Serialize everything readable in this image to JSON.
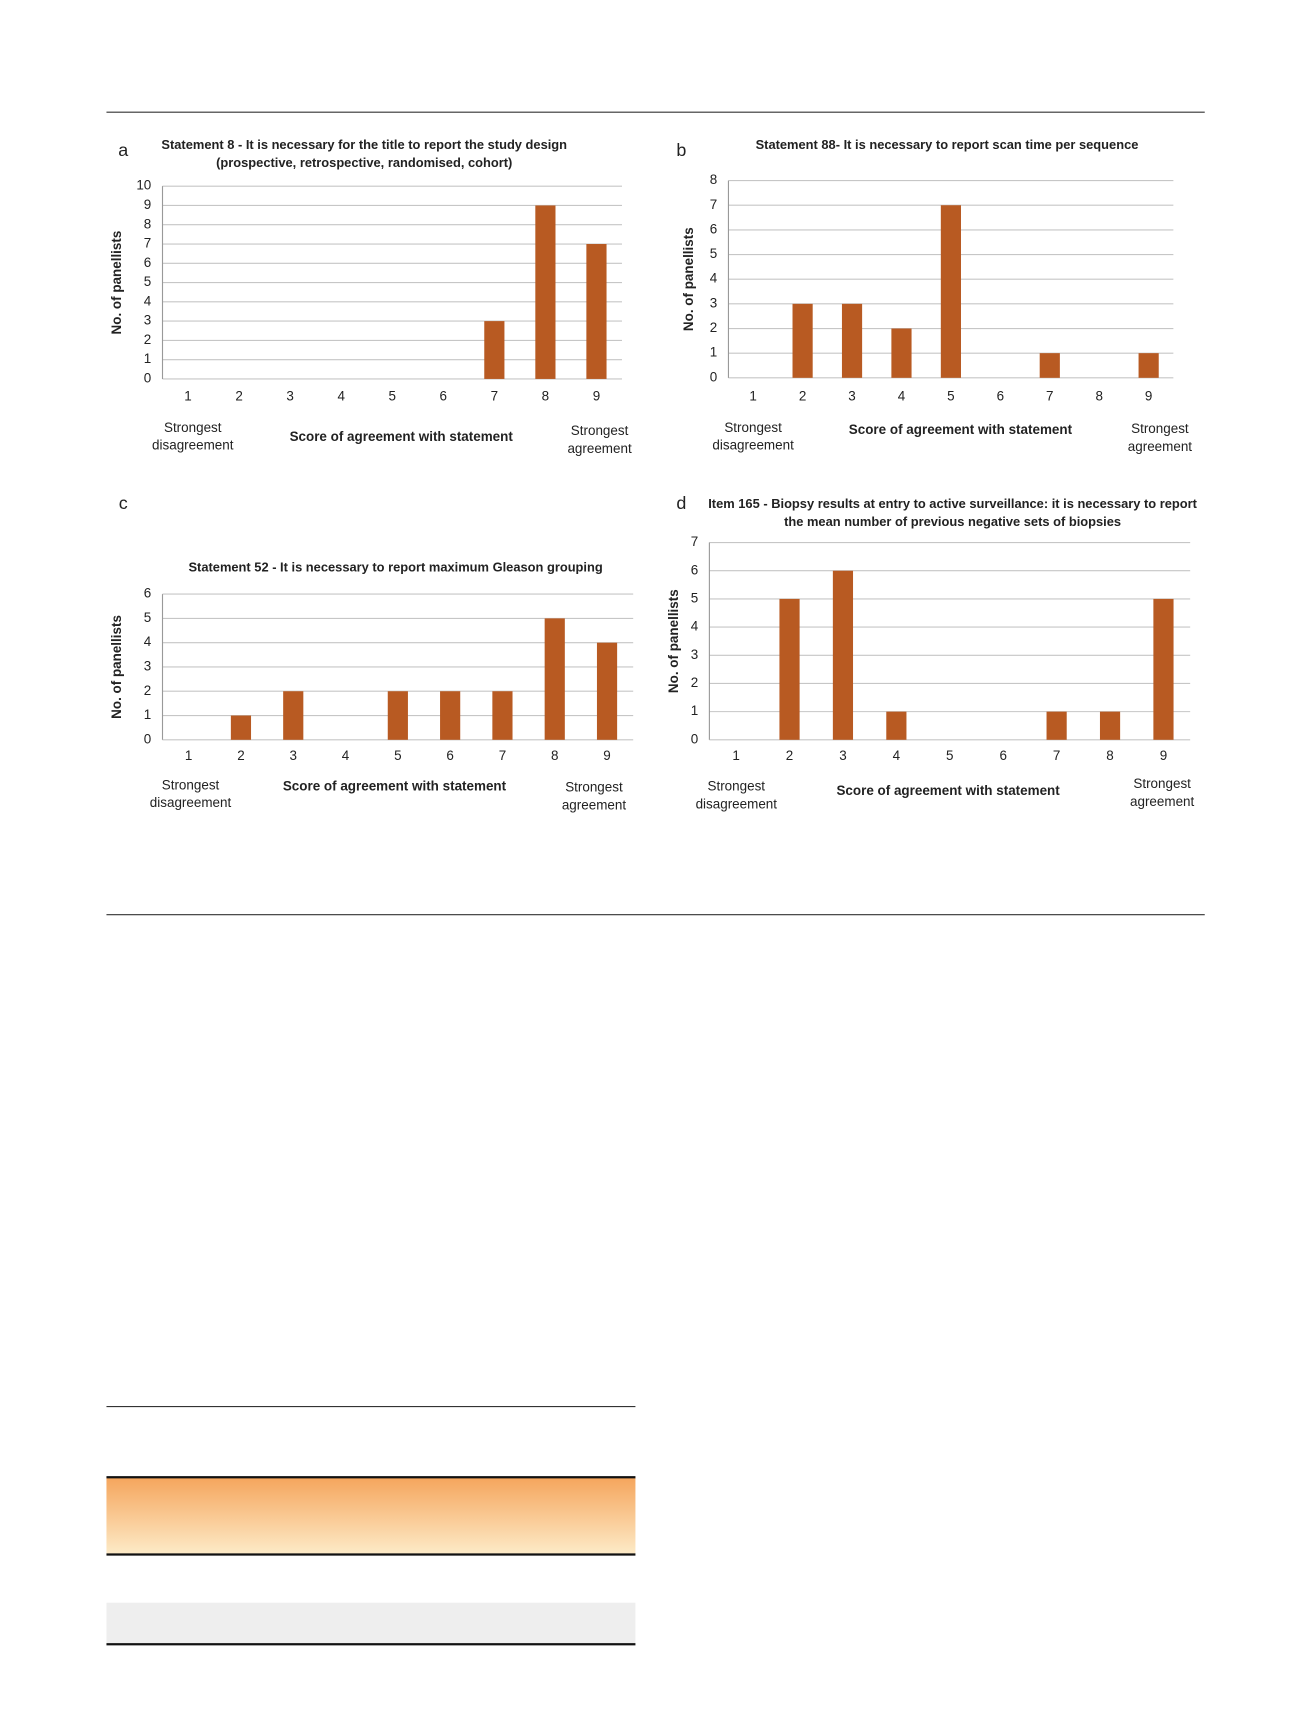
{
  "chart_data": [
    {
      "type": "bar",
      "panel": "a",
      "title": [
        "Statement 8 - It is necessary for the title to report  the study design",
        "(prospective, retrospective, randomised, cohort)"
      ],
      "y_label": "No. of panellists",
      "x_label": "Score of agreement with statement",
      "left_note": [
        "Strongest",
        "disagreement"
      ],
      "right_note": [
        "Strongest",
        "agreement"
      ],
      "categories": [
        "1",
        "2",
        "3",
        "4",
        "5",
        "6",
        "7",
        "8",
        "9"
      ],
      "values": [
        0,
        0,
        0,
        0,
        0,
        0,
        3,
        9,
        7
      ],
      "color": "#b85a22",
      "ylim": [
        0,
        10
      ],
      "yticks": [
        0,
        1,
        2,
        3,
        4,
        5,
        6,
        7,
        8,
        9,
        10
      ],
      "grid": true
    },
    {
      "type": "bar",
      "panel": "b",
      "title": [
        "Statement 88- It is necessary to report scan time per sequence"
      ],
      "y_label": "No. of panellists",
      "x_label": "Score of agreement with statement",
      "left_note": [
        "Strongest",
        "disagreement"
      ],
      "right_note": [
        "Strongest",
        "agreement"
      ],
      "categories": [
        "1",
        "2",
        "3",
        "4",
        "5",
        "6",
        "7",
        "8",
        "9"
      ],
      "values": [
        0,
        3,
        3,
        2,
        7,
        0,
        1,
        0,
        1
      ],
      "color": "#b85a22",
      "ylim": [
        0,
        8
      ],
      "yticks": [
        0,
        1,
        2,
        3,
        4,
        5,
        6,
        7,
        8
      ],
      "grid": true
    },
    {
      "type": "bar",
      "panel": "c",
      "title": [
        "Statement 52 - It is necessary to report maximum Gleason grouping"
      ],
      "y_label": "No. of panellists",
      "x_label": "Score of agreement with statement",
      "left_note": [
        "Strongest",
        "disagreement"
      ],
      "right_note": [
        "Strongest",
        "agreement"
      ],
      "categories": [
        "1",
        "2",
        "3",
        "4",
        "5",
        "6",
        "7",
        "8",
        "9"
      ],
      "values": [
        0,
        1,
        2,
        0,
        2,
        2,
        2,
        5,
        4
      ],
      "color": "#b85a22",
      "ylim": [
        0,
        6
      ],
      "yticks": [
        0,
        1,
        2,
        3,
        4,
        5,
        6
      ],
      "grid": true
    },
    {
      "type": "bar",
      "panel": "d",
      "title": [
        "Item 165 - Biopsy results at entry to active surveillance: it is necessary to report",
        "the mean number of previous negative sets of biopsies"
      ],
      "y_label": "No. of panellists",
      "x_label": "Score of agreement with statement",
      "left_note": [
        "Strongest",
        "disagreement"
      ],
      "right_note": [
        "Strongest",
        "agreement"
      ],
      "categories": [
        "1",
        "2",
        "3",
        "4",
        "5",
        "6",
        "7",
        "8",
        "9"
      ],
      "values": [
        0,
        5,
        6,
        1,
        0,
        0,
        1,
        1,
        5
      ],
      "color": "#b85a22",
      "ylim": [
        0,
        7
      ],
      "yticks": [
        0,
        1,
        2,
        3,
        4,
        5,
        6,
        7
      ],
      "grid": true
    }
  ]
}
